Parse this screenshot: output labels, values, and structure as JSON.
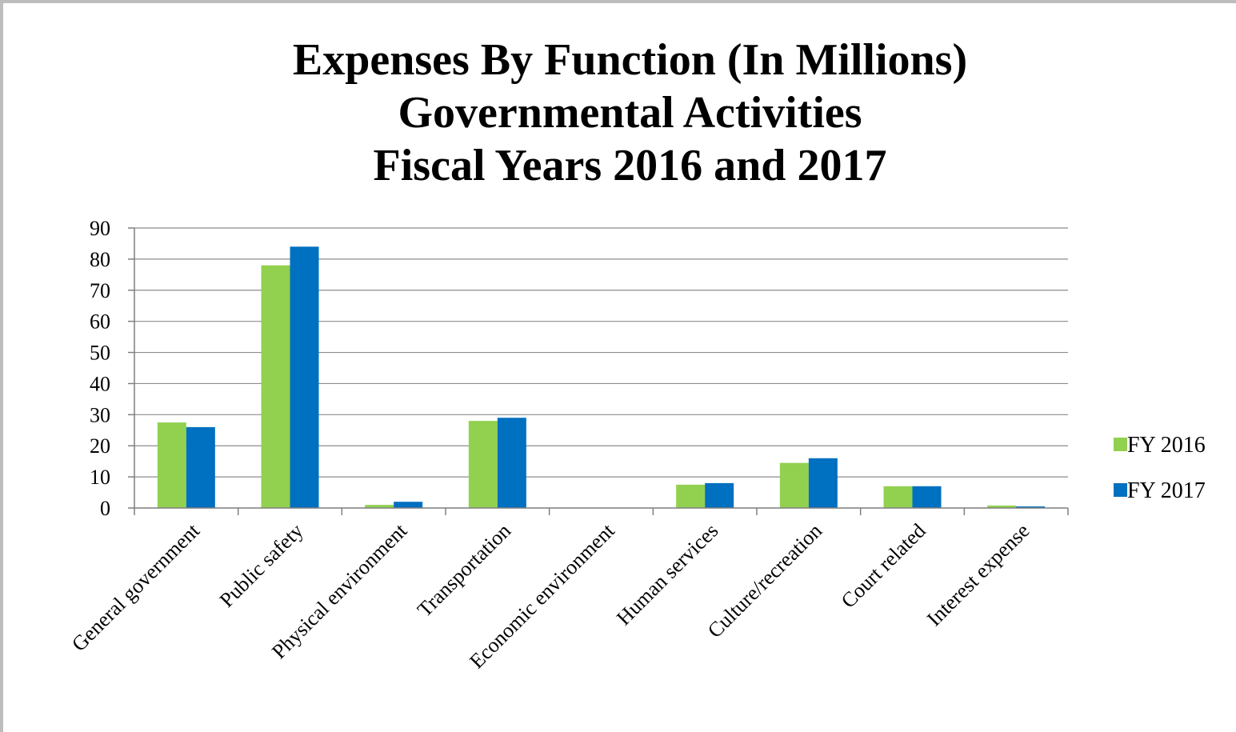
{
  "chart_data": {
    "type": "bar",
    "title_lines": [
      "Expenses By Function (In Millions)",
      "Governmental Activities",
      "Fiscal Years 2016 and 2017"
    ],
    "categories": [
      "General government",
      "Public safety",
      "Physical environment",
      "Transportation",
      "Economic environment",
      "Human services",
      "Culture/recreation",
      "Court related",
      "Interest expense"
    ],
    "series": [
      {
        "name": "FY 2016",
        "color": "#92d050",
        "values": [
          27.5,
          78,
          1,
          28,
          0,
          7.5,
          14.5,
          7,
          0.8
        ]
      },
      {
        "name": "FY 2017",
        "color": "#0070c0",
        "values": [
          26,
          84,
          2,
          29,
          0,
          8,
          16,
          7,
          0.5
        ]
      }
    ],
    "ylim": [
      0,
      90
    ],
    "yticks": [
      0,
      10,
      20,
      30,
      40,
      50,
      60,
      70,
      80,
      90
    ],
    "grid": true,
    "legend": "right",
    "xlabel": "",
    "ylabel": ""
  }
}
